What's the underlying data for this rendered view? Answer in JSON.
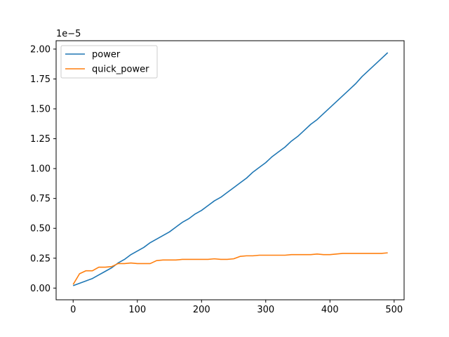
{
  "chart_data": {
    "type": "line",
    "title": "",
    "xlabel": "",
    "ylabel": "",
    "y_offset_label": "1e−5",
    "xlim": [
      -26.5,
      515.5
    ],
    "ylim": [
      -0.098,
      2.07
    ],
    "xticks": [
      0,
      100,
      200,
      300,
      400,
      500
    ],
    "xtick_labels": [
      "0",
      "100",
      "200",
      "300",
      "400",
      "500"
    ],
    "yticks": [
      0.0,
      0.25,
      0.5,
      0.75,
      1.0,
      1.25,
      1.5,
      1.75,
      2.0
    ],
    "ytick_labels": [
      "0.00",
      "0.25",
      "0.50",
      "0.75",
      "1.00",
      "1.25",
      "1.50",
      "1.75",
      "2.00"
    ],
    "grid": false,
    "legend_position": "upper-left",
    "series": [
      {
        "name": "power",
        "color": "#1f77b4",
        "x": [
          0,
          10,
          20,
          30,
          40,
          50,
          60,
          70,
          80,
          90,
          100,
          110,
          120,
          130,
          140,
          150,
          160,
          170,
          180,
          190,
          200,
          210,
          220,
          230,
          240,
          250,
          260,
          270,
          280,
          290,
          300,
          310,
          320,
          330,
          340,
          350,
          360,
          370,
          380,
          390,
          400,
          410,
          420,
          430,
          440,
          450,
          460,
          470,
          480,
          490
        ],
        "y": [
          0.02,
          0.04,
          0.06,
          0.08,
          0.11,
          0.14,
          0.17,
          0.21,
          0.24,
          0.28,
          0.31,
          0.34,
          0.38,
          0.41,
          0.44,
          0.47,
          0.51,
          0.55,
          0.58,
          0.62,
          0.65,
          0.69,
          0.73,
          0.76,
          0.8,
          0.84,
          0.88,
          0.92,
          0.97,
          1.01,
          1.05,
          1.1,
          1.14,
          1.18,
          1.23,
          1.27,
          1.32,
          1.37,
          1.41,
          1.46,
          1.51,
          1.56,
          1.61,
          1.66,
          1.71,
          1.77,
          1.82,
          1.87,
          1.92,
          1.97
        ]
      },
      {
        "name": "quick_power",
        "color": "#ff7f0e",
        "x": [
          0,
          10,
          20,
          30,
          40,
          50,
          60,
          70,
          80,
          90,
          100,
          110,
          120,
          130,
          140,
          150,
          160,
          170,
          180,
          190,
          200,
          210,
          220,
          230,
          240,
          250,
          260,
          270,
          280,
          290,
          300,
          310,
          320,
          330,
          340,
          350,
          360,
          370,
          380,
          390,
          400,
          410,
          420,
          430,
          440,
          450,
          460,
          470,
          480,
          490
        ],
        "y": [
          0.03,
          0.12,
          0.145,
          0.145,
          0.175,
          0.175,
          0.18,
          0.205,
          0.205,
          0.21,
          0.205,
          0.205,
          0.205,
          0.23,
          0.235,
          0.235,
          0.235,
          0.24,
          0.24,
          0.24,
          0.24,
          0.24,
          0.245,
          0.24,
          0.24,
          0.245,
          0.265,
          0.27,
          0.27,
          0.275,
          0.275,
          0.275,
          0.275,
          0.275,
          0.28,
          0.28,
          0.28,
          0.28,
          0.285,
          0.28,
          0.28,
          0.285,
          0.29,
          0.29,
          0.29,
          0.29,
          0.29,
          0.29,
          0.29,
          0.295
        ]
      }
    ]
  }
}
